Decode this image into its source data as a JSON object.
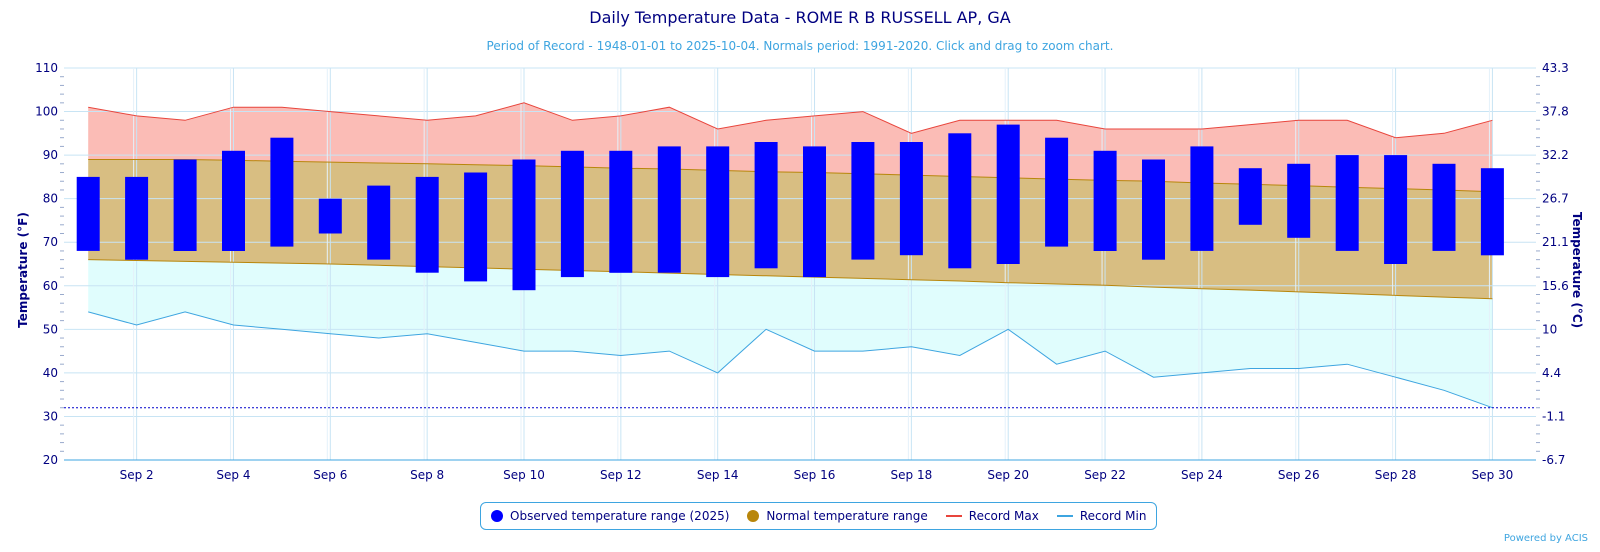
{
  "chart_data": {
    "type": "bar",
    "title": "Daily Temperature Data - ROME R B RUSSELL AP, GA",
    "subtitle": "Period of Record - 1948-01-01 to 2025-10-04. Normals period: 1991-2020. Click and drag to zoom chart.",
    "ylabel_left": "Temperature (°F)",
    "ylabel_right": "Temperature (°C)",
    "ylim": [
      20,
      110
    ],
    "y_ticks_left": [
      "110",
      "100",
      "90",
      "80",
      "70",
      "60",
      "50",
      "40",
      "30",
      "20"
    ],
    "y_ticks_right": [
      "43.3",
      "37.8",
      "32.2",
      "26.7",
      "21.1",
      "15.6",
      "10",
      "4.4",
      "-1.1",
      "-6.7"
    ],
    "x_ticks": [
      "Sep 2",
      "Sep 4",
      "Sep 6",
      "Sep 8",
      "Sep 10",
      "Sep 12",
      "Sep 14",
      "Sep 16",
      "Sep 18",
      "Sep 20",
      "Sep 22",
      "Sep 24",
      "Sep 26",
      "Sep 28",
      "Sep 30"
    ],
    "days": [
      1,
      2,
      3,
      4,
      5,
      6,
      7,
      8,
      9,
      10,
      11,
      12,
      13,
      14,
      15,
      16,
      17,
      18,
      19,
      20,
      21,
      22,
      23,
      24,
      25,
      26,
      27,
      28,
      29,
      30
    ],
    "freezing_line": 32,
    "series": [
      {
        "name": "Observed temperature range (2025)",
        "type": "range-bar",
        "high": [
          85,
          85,
          89,
          91,
          94,
          80,
          83,
          85,
          86,
          89,
          91,
          91,
          92,
          92,
          93,
          92,
          93,
          93,
          95,
          97,
          94,
          91,
          89,
          92,
          87,
          88,
          90,
          90,
          88,
          87
        ],
        "low": [
          68,
          66,
          68,
          68,
          69,
          72,
          66,
          63,
          61,
          59,
          62,
          63,
          63,
          62,
          64,
          62,
          66,
          67,
          64,
          65,
          69,
          68,
          66,
          68,
          74,
          71,
          68,
          65,
          68,
          67
        ]
      },
      {
        "name": "Normal temperature range",
        "type": "range-area",
        "high": [
          89,
          89,
          89,
          88.8,
          88.6,
          88.4,
          88.2,
          88,
          87.8,
          87.6,
          87.3,
          87,
          86.8,
          86.5,
          86.2,
          86,
          85.7,
          85.4,
          85.1,
          84.8,
          84.5,
          84.2,
          84,
          83.6,
          83.3,
          83,
          82.6,
          82.3,
          82,
          81.6
        ],
        "low": [
          66,
          65.8,
          65.6,
          65.4,
          65.2,
          65,
          64.7,
          64.4,
          64.1,
          63.8,
          63.5,
          63.2,
          62.9,
          62.6,
          62.3,
          62,
          61.7,
          61.4,
          61.1,
          60.7,
          60.4,
          60.1,
          59.7,
          59.3,
          59,
          58.6,
          58.2,
          57.8,
          57.4,
          57
        ]
      },
      {
        "name": "Record Max",
        "type": "line",
        "values": [
          101,
          99,
          98,
          101,
          101,
          100,
          99,
          98,
          99,
          102,
          98,
          99,
          101,
          96,
          98,
          99,
          100,
          95,
          98,
          98,
          98,
          96,
          96,
          96,
          97,
          98,
          98,
          94,
          95,
          98
        ]
      },
      {
        "name": "Record Min",
        "type": "line",
        "values": [
          54,
          51,
          54,
          51,
          50,
          49,
          48,
          49,
          47,
          45,
          45,
          44,
          45,
          40,
          50,
          45,
          45,
          46,
          44,
          50,
          42,
          45,
          39,
          40,
          41,
          41,
          42,
          39,
          36,
          32
        ]
      }
    ]
  },
  "colors": {
    "observed": "#0000ff",
    "normal_fill": "#d8be82",
    "normal_line": "#b8860b",
    "normal_dot": "#b8860b",
    "record_max_fill": "#fbbcb6",
    "record_max_line": "#e8453c",
    "record_min_fill": "#e0fdfd",
    "record_min_line": "#3ea5e0",
    "text": "#000080",
    "grid": "#c8e4f4"
  },
  "legend": {
    "observed": "Observed temperature range (2025)",
    "normal": "Normal temperature range",
    "record_max": "Record Max",
    "record_min": "Record Min"
  },
  "credit": "Powered by ACIS"
}
